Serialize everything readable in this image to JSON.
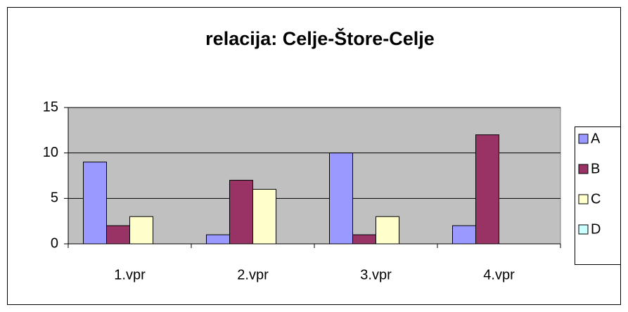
{
  "chart_data": {
    "type": "bar",
    "title": "relacija: Celje-Štore-Celje",
    "categories": [
      "1.vpr",
      "2.vpr",
      "3.vpr",
      "4.vpr"
    ],
    "series": [
      {
        "name": "A",
        "color": "#9999ff",
        "values": [
          9,
          1,
          10,
          2
        ]
      },
      {
        "name": "B",
        "color": "#993366",
        "values": [
          2,
          7,
          1,
          12
        ]
      },
      {
        "name": "C",
        "color": "#ffffcc",
        "values": [
          3,
          6,
          3,
          0
        ]
      },
      {
        "name": "D",
        "color": "#ccffff",
        "values": [
          0,
          0,
          0,
          0
        ]
      }
    ],
    "ylim": [
      0,
      15
    ],
    "yticks": [
      0,
      5,
      10,
      15
    ],
    "grid": true,
    "legend": "right"
  }
}
